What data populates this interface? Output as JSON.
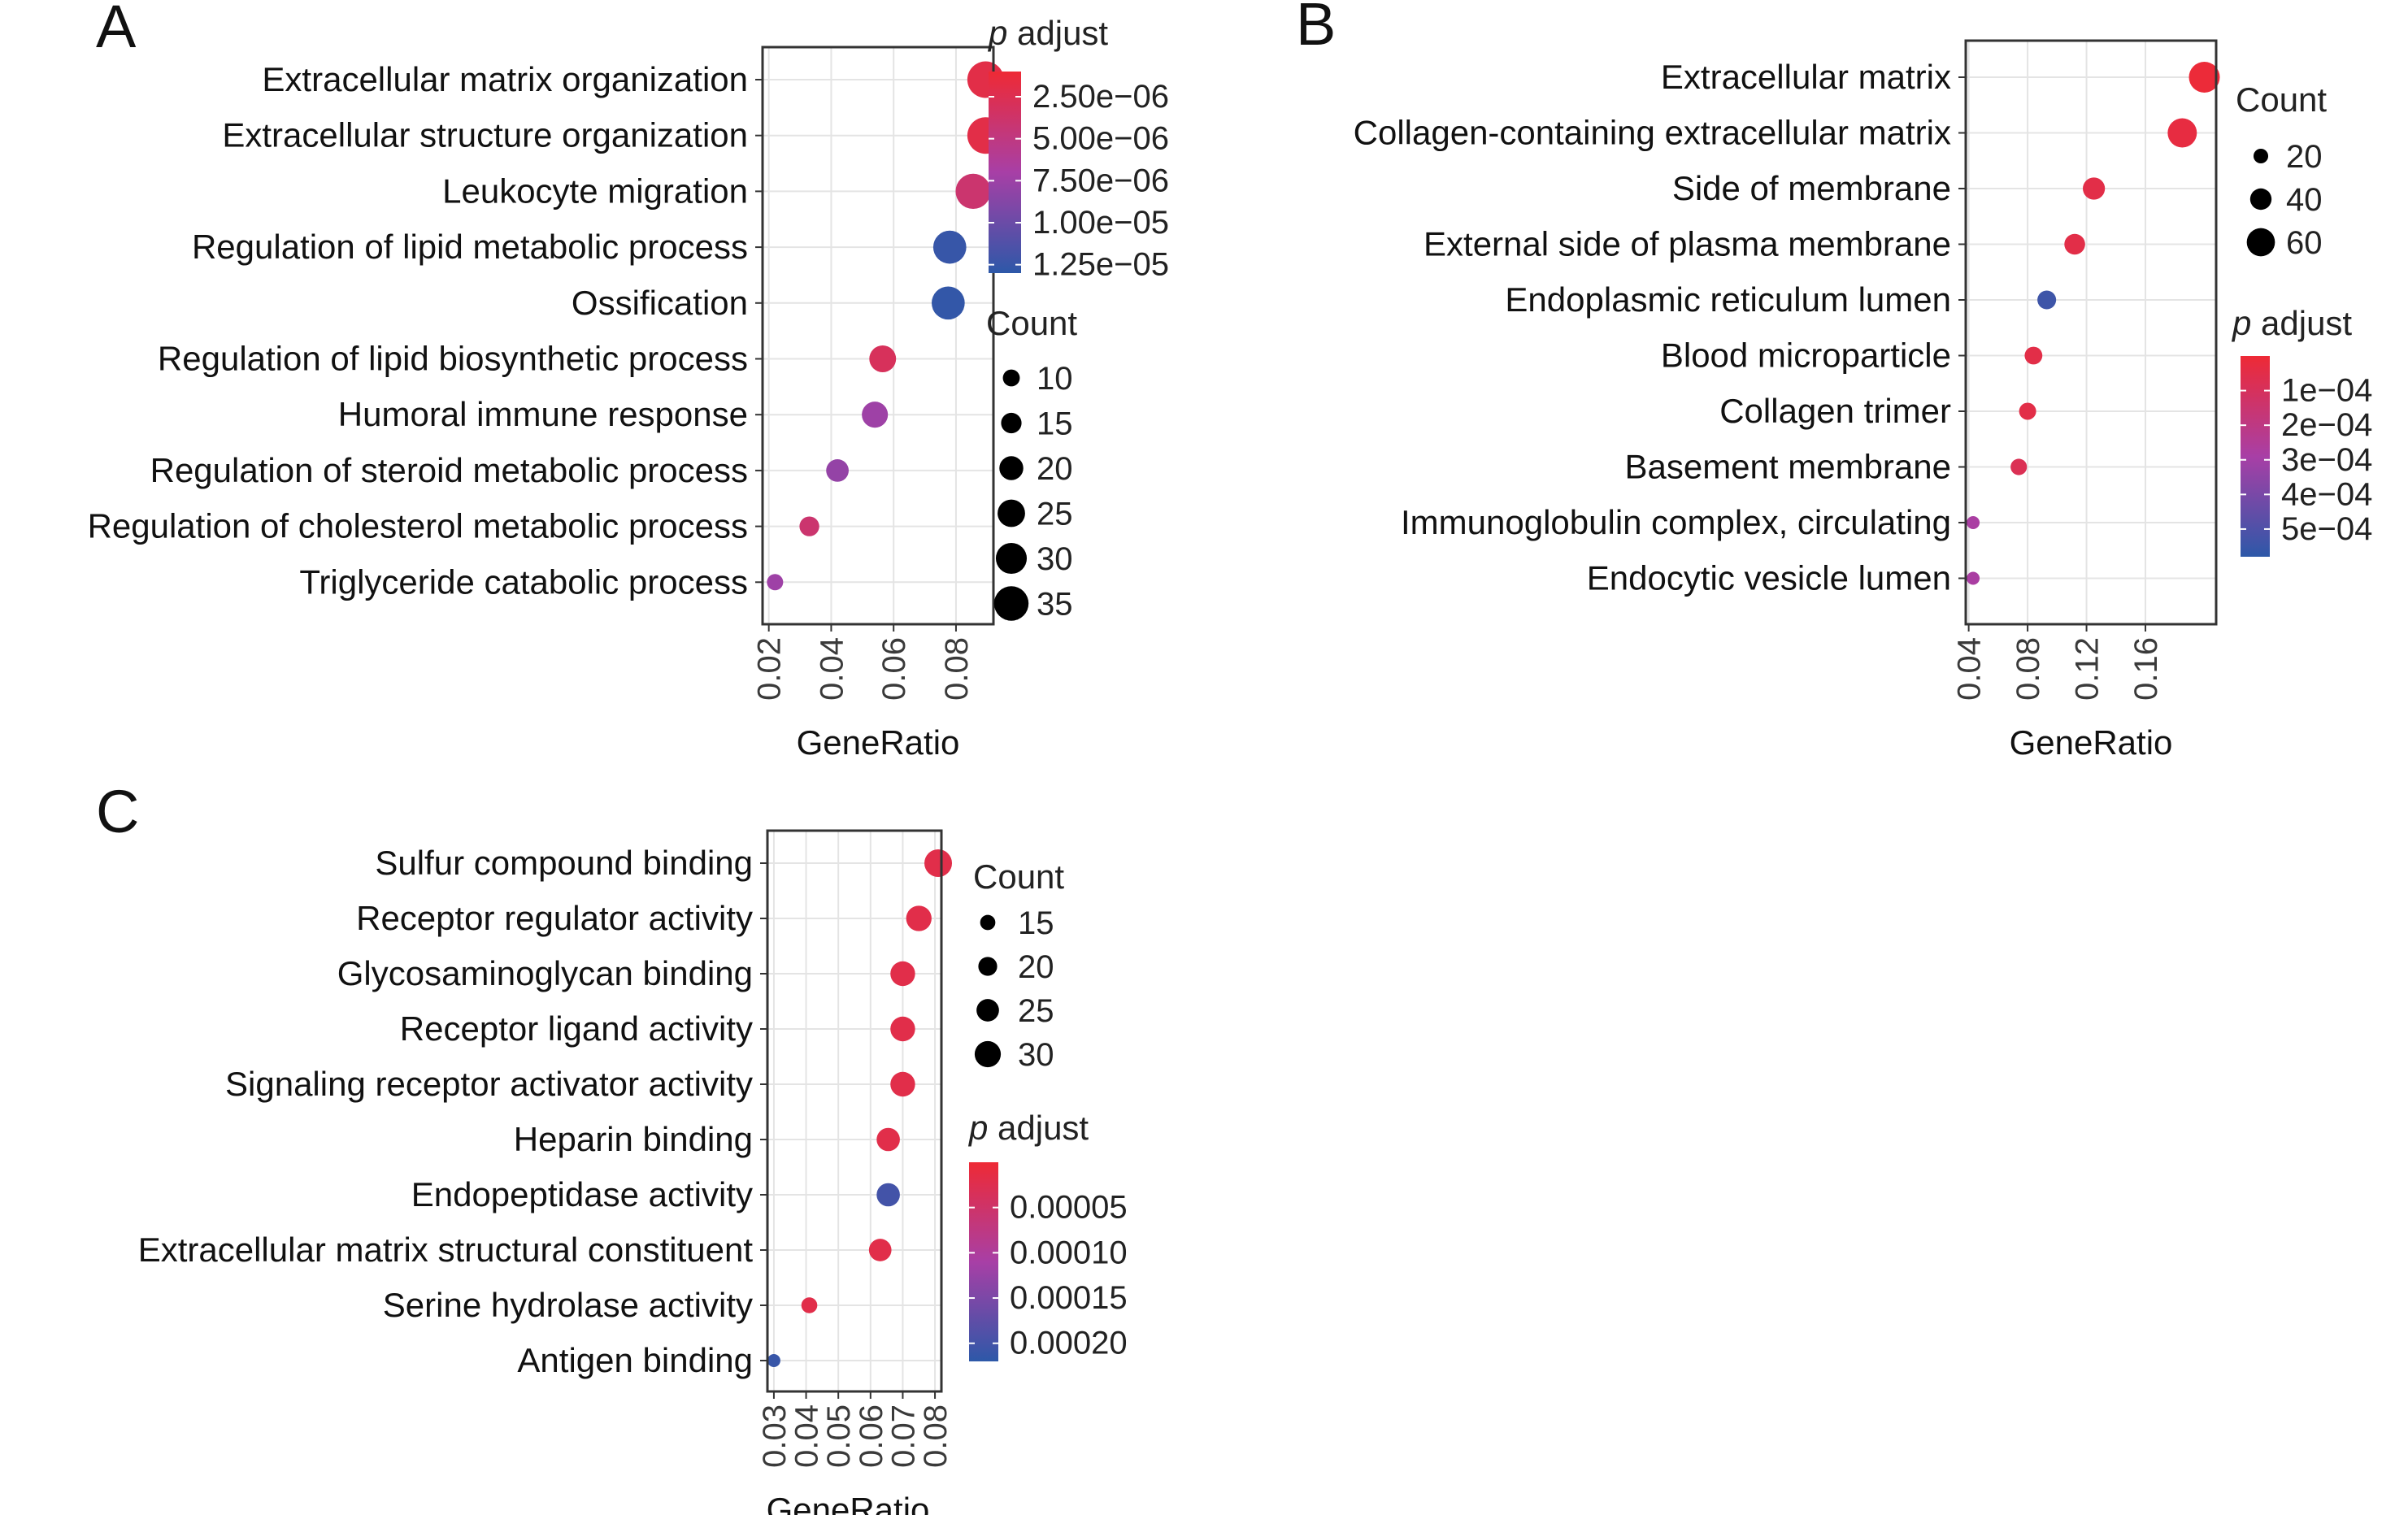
{
  "colors": {
    "low_padj": "#EE2A35",
    "mid_padj": "#A83FA6",
    "high_padj": "#2D58A8",
    "size_legend_dot": "#000000",
    "grid": "#e4e4e4",
    "frame": "#333333"
  },
  "chart_data": [
    {
      "type": "scatter",
      "panel": "A",
      "xlabel": "GeneRatio",
      "ylabel": "",
      "xlim": [
        0.018,
        0.092
      ],
      "xticks": [
        0.02,
        0.04,
        0.06,
        0.08
      ],
      "xtick_labels": [
        "0.02",
        "0.04",
        "0.06",
        "0.08"
      ],
      "grid": true,
      "categories": [
        "Extracellular matrix organization",
        "Extracellular structure organization",
        "Leukocyte migration",
        "Regulation of lipid metabolic process",
        "Ossification",
        "Regulation of lipid biosynthetic process",
        "Humoral immune response",
        "Regulation of steroid metabolic process",
        "Regulation of cholesterol metabolic process",
        "Triglyceride catabolic process"
      ],
      "gene_ratio": [
        0.0895,
        0.0895,
        0.0855,
        0.078,
        0.0775,
        0.0565,
        0.054,
        0.042,
        0.033,
        0.022
      ],
      "count": [
        38,
        38,
        36,
        33,
        33,
        24,
        23,
        18,
        14,
        9
      ],
      "p_adjust": [
        2e-06,
        2e-06,
        4e-06,
        1.25e-05,
        1.27e-05,
        3e-06,
        7.5e-06,
        8e-06,
        4e-06,
        7.5e-06
      ],
      "color_legend": {
        "title_italic": "p",
        "title_rest": " adjust",
        "range": [
          1e-06,
          1.3e-05
        ],
        "labels": [
          "2.50e−06",
          "5.00e−06",
          "7.50e−06",
          "1.00e−05",
          "1.25e−05"
        ],
        "values": [
          2.5e-06,
          5e-06,
          7.5e-06,
          1e-05,
          1.25e-05
        ],
        "placement": "top-right"
      },
      "size_legend": {
        "title": "Count",
        "labels": [
          "10",
          "15",
          "20",
          "25",
          "30",
          "35"
        ],
        "values": [
          10,
          15,
          20,
          25,
          30,
          35
        ],
        "placement": "right"
      }
    },
    {
      "type": "scatter",
      "panel": "B",
      "xlabel": "GeneRatio",
      "ylabel": "",
      "xlim": [
        0.038,
        0.208
      ],
      "xticks": [
        0.04,
        0.08,
        0.12,
        0.16
      ],
      "xtick_labels": [
        "0.04",
        "0.08",
        "0.12",
        "0.16"
      ],
      "grid": true,
      "categories": [
        "Extracellular matrix",
        "Collagen-containing extracellular matrix",
        "Side of membrane",
        "External side of plasma membrane",
        "Endoplasmic reticulum lumen",
        "Blood microparticle",
        "Collagen trimer",
        "Basement membrane",
        "Immunoglobulin complex, circulating",
        "Endocytic vesicle lumen"
      ],
      "gene_ratio": [
        0.2,
        0.185,
        0.125,
        0.112,
        0.093,
        0.084,
        0.08,
        0.074,
        0.043,
        0.043
      ],
      "count": [
        68,
        63,
        42,
        38,
        32,
        29,
        27,
        25,
        15,
        15
      ],
      "p_adjust": [
        1e-05,
        3e-05,
        5e-05,
        5e-05,
        0.00054,
        5e-05,
        5e-05,
        8e-05,
        0.00028,
        0.00028
      ],
      "color_legend": {
        "title_italic": "p",
        "title_rest": " adjust",
        "range": [
          0.0,
          0.00058
        ],
        "labels": [
          "1e−04",
          "2e−04",
          "3e−04",
          "4e−04",
          "5e−04"
        ],
        "values": [
          0.0001,
          0.0002,
          0.0003,
          0.0004,
          0.0005
        ],
        "placement": "right"
      },
      "size_legend": {
        "title": "Count",
        "labels": [
          "20",
          "40",
          "60"
        ],
        "values": [
          20,
          40,
          60
        ],
        "placement": "top-right"
      }
    },
    {
      "type": "scatter",
      "panel": "C",
      "xlabel": "GeneRatio",
      "ylabel": "",
      "xlim": [
        0.028,
        0.082
      ],
      "xticks": [
        0.03,
        0.04,
        0.05,
        0.06,
        0.07,
        0.08
      ],
      "xtick_labels": [
        "0.03",
        "0.04",
        "0.05",
        "0.06",
        "0.07",
        "0.08"
      ],
      "grid": true,
      "categories": [
        "Sulfur compound binding",
        "Receptor regulator activity",
        "Glycosaminoglycan binding",
        "Receptor ligand activity",
        "Signaling receptor activator activity",
        "Heparin binding",
        "Endopeptidase activity",
        "Extracellular matrix structural constituent",
        "Serine hydrolase activity",
        "Antigen binding"
      ],
      "gene_ratio": [
        0.081,
        0.075,
        0.07,
        0.07,
        0.07,
        0.0655,
        0.0655,
        0.063,
        0.041,
        0.03
      ],
      "count": [
        32,
        29,
        28,
        28,
        28,
        26,
        26,
        25,
        16,
        12
      ],
      "p_adjust": [
        2e-05,
        2e-05,
        2e-05,
        2e-05,
        2e-05,
        2e-05,
        0.0002,
        2e-05,
        2e-05,
        0.00021
      ],
      "color_legend": {
        "title_italic": "p",
        "title_rest": " adjust",
        "range": [
          0.0,
          0.00022
        ],
        "labels": [
          "0.00005",
          "0.00010",
          "0.00015",
          "0.00020"
        ],
        "values": [
          5e-05,
          0.0001,
          0.00015,
          0.0002
        ],
        "placement": "right"
      },
      "size_legend": {
        "title": "Count",
        "labels": [
          "15",
          "20",
          "25",
          "30"
        ],
        "values": [
          15,
          20,
          25,
          30
        ],
        "placement": "top-right"
      }
    }
  ]
}
